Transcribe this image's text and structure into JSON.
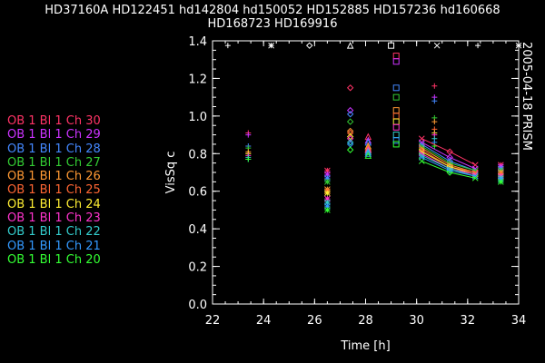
{
  "title_lines": [
    "HD37160A HD122451 hd142804 hd150052 HD152885 HD157236 hd160668",
    "HD168723 HD169916"
  ],
  "side_label": "2005-04-18 PRISM",
  "chart_data": {
    "type": "scatter",
    "xlabel": "Time [h]",
    "ylabel": "VisSq c",
    "xlim": [
      22,
      34
    ],
    "ylim": [
      0.0,
      1.4
    ],
    "x_ticks": [
      "22",
      "24",
      "26",
      "28",
      "30",
      "32",
      "34"
    ],
    "y_ticks": [
      "0.0",
      "0.2",
      "0.4",
      "0.6",
      "0.8",
      "1.0",
      "1.2",
      "1.4"
    ],
    "grid": false,
    "legend_position": "left-outside",
    "calibrator_markers": [
      {
        "x": 22.6,
        "symbol": "plus"
      },
      {
        "x": 24.3,
        "symbol": "asterisk"
      },
      {
        "x": 25.8,
        "symbol": "diamond"
      },
      {
        "x": 27.4,
        "symbol": "triangle"
      },
      {
        "x": 29.0,
        "symbol": "square"
      },
      {
        "x": 30.8,
        "symbol": "x"
      },
      {
        "x": 32.4,
        "symbol": "plus"
      },
      {
        "x": 34.0,
        "symbol": "asterisk"
      }
    ],
    "groups": [
      {
        "x": 23.4,
        "symbol": "plus",
        "values": [
          0.91,
          0.9,
          0.84,
          0.83,
          0.81,
          0.8,
          0.8,
          0.79,
          0.78,
          0.77,
          0.77
        ]
      },
      {
        "x": 26.5,
        "symbol": "asterisk",
        "values": [
          0.71,
          0.69,
          0.67,
          0.65,
          0.61,
          0.6,
          0.59,
          0.56,
          0.54,
          0.52,
          0.5
        ]
      },
      {
        "x": 27.4,
        "symbol": "diamond",
        "values": [
          1.15,
          1.03,
          1.01,
          0.97,
          0.92,
          0.91,
          0.89,
          0.88,
          0.86,
          0.85,
          0.82
        ]
      },
      {
        "x": 28.1,
        "symbol": "triangle",
        "values": [
          0.89,
          0.87,
          0.86,
          0.84,
          0.84,
          0.83,
          0.82,
          0.82,
          0.81,
          0.8,
          0.79
        ]
      },
      {
        "x": 29.2,
        "symbol": "square",
        "values": [
          1.32,
          1.29,
          1.15,
          1.1,
          1.03,
          1.0,
          0.97,
          0.94,
          0.9,
          0.87,
          0.85
        ]
      },
      {
        "x": 30.7,
        "symbol": "plus",
        "values": [
          1.16,
          1.1,
          1.08,
          0.99,
          0.97,
          0.93,
          0.91,
          0.9,
          0.88,
          0.86,
          0.84
        ]
      },
      {
        "x": 31.3,
        "symbol": "diamond",
        "values": [
          0.81,
          0.78,
          0.76,
          0.75,
          0.74,
          0.73,
          0.73,
          0.72,
          0.72,
          0.71,
          0.7
        ]
      },
      {
        "x": 32.3,
        "symbol": "x",
        "values": [
          0.74,
          0.72,
          0.71,
          0.71,
          0.7,
          0.7,
          0.69,
          0.69,
          0.68,
          0.68,
          0.67
        ]
      },
      {
        "x": 33.3,
        "symbol": "asterisk",
        "values": [
          0.74,
          0.73,
          0.72,
          0.71,
          0.7,
          0.69,
          0.68,
          0.68,
          0.67,
          0.66,
          0.65
        ]
      }
    ],
    "x_markers_at_30_2": {
      "x": 30.2,
      "symbol": "x",
      "values": [
        0.88,
        0.86,
        0.85,
        0.84,
        0.83,
        0.82,
        0.81,
        0.8,
        0.79,
        0.78,
        0.76
      ]
    },
    "series": [
      {
        "name": "OB 1 Bl 1 Ch 30",
        "color": "#ff3366"
      },
      {
        "name": "OB 1 Bl 1 Ch 29",
        "color": "#cc33ff"
      },
      {
        "name": "OB 1 Bl 1 Ch 28",
        "color": "#4488ff"
      },
      {
        "name": "OB 1 Bl 1 Ch 27",
        "color": "#33cc33"
      },
      {
        "name": "OB 1 Bl 1 Ch 26",
        "color": "#ff9933"
      },
      {
        "name": "OB 1 Bl 1 Ch 25",
        "color": "#ff6633"
      },
      {
        "name": "OB 1 Bl 1 Ch 24",
        "color": "#ffee33"
      },
      {
        "name": "OB 1 Bl 1 Ch 23",
        "color": "#ff33cc"
      },
      {
        "name": "OB 1 Bl 1 Ch 22",
        "color": "#33cccc"
      },
      {
        "name": "OB 1 Bl 1 Ch 21",
        "color": "#3399ff"
      },
      {
        "name": "OB 1 Bl 1 Ch 20",
        "color": "#33ff33"
      }
    ]
  }
}
